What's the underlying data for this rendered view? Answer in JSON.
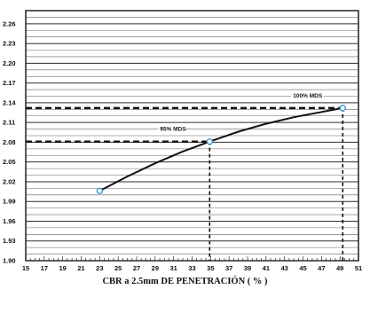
{
  "chart_data": {
    "type": "line",
    "xlabel": "CBR a 2.5mm DE PENETRACIÓN  ( % )",
    "ylabel": "",
    "xlim": [
      15,
      51
    ],
    "ylim": [
      1.9,
      2.28
    ],
    "x_ticks": [
      "15",
      "17",
      "19",
      "21",
      "23",
      "25",
      "27",
      "29",
      "31",
      "33",
      "35",
      "37",
      "39",
      "41",
      "43",
      "45",
      "47",
      "49",
      "51"
    ],
    "y_ticks": [
      "1.90",
      "1.93",
      "1.96",
      "1.99",
      "2.02",
      "2.05",
      "2.08",
      "2.11",
      "2.14",
      "2.17",
      "2.20",
      "2.23",
      "2.26"
    ],
    "series": [
      {
        "x": [
          23.0,
          26.0,
          29.0,
          32.0,
          34.9,
          38.0,
          41.0,
          44.0,
          47.0,
          49.3
        ],
        "y": [
          2.006,
          2.028,
          2.048,
          2.066,
          2.081,
          2.096,
          2.108,
          2.118,
          2.126,
          2.132
        ]
      }
    ],
    "marked_points": [
      {
        "x": 23.0,
        "y": 2.006
      },
      {
        "x": 34.9,
        "y": 2.081
      },
      {
        "x": 49.3,
        "y": 2.132
      }
    ],
    "annotations": [
      {
        "text": "95% MDS",
        "x": 34.9,
        "y": 2.081
      },
      {
        "text": "100% MDS",
        "x": 49.3,
        "y": 2.132
      }
    ],
    "grid": true,
    "colors": {
      "curve": "#111111",
      "marker": "#3a9bd6",
      "grid": "#222222"
    }
  }
}
